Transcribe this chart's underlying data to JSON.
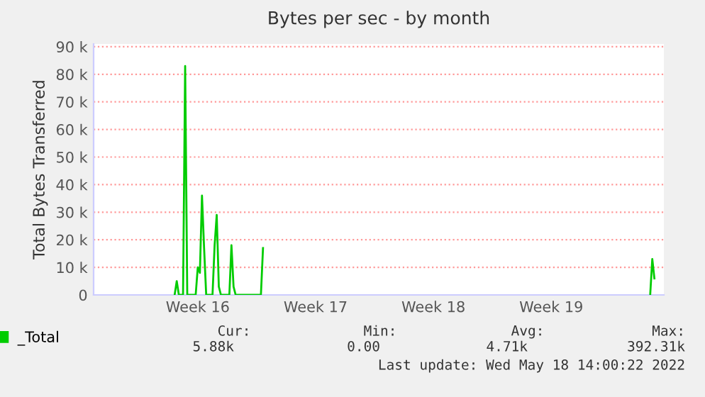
{
  "chart_data": {
    "type": "line",
    "title": "Bytes per sec - by month",
    "ylabel": "Total Bytes Transferred",
    "categories": [
      null,
      null,
      null,
      null,
      null,
      null,
      null,
      null,
      null,
      null,
      null,
      null,
      null,
      null,
      null,
      null,
      null,
      null,
      null,
      null,
      null,
      null,
      null,
      null,
      null,
      null,
      null,
      null,
      null,
      null,
      null,
      null,
      null,
      null,
      null,
      null,
      null,
      null,
      null,
      null,
      null,
      null,
      null,
      null,
      null,
      null,
      null,
      null,
      null,
      "Week 16",
      null,
      null,
      null,
      null,
      null,
      null,
      null,
      null,
      null,
      null,
      null,
      null,
      null,
      null,
      null,
      null,
      null,
      null,
      null,
      null,
      null,
      null,
      null,
      null,
      null,
      null,
      null,
      null,
      null,
      null,
      null,
      null,
      null,
      null,
      null,
      null,
      null,
      null,
      null,
      null,
      null,
      null,
      null,
      null,
      null,
      null,
      null,
      null,
      null,
      null,
      null,
      null,
      null,
      null,
      null,
      "Week 17",
      null,
      null,
      null,
      null,
      null,
      null,
      null,
      null,
      null,
      null,
      null,
      null,
      null,
      null,
      null,
      null,
      null,
      null,
      null,
      null,
      null,
      null,
      null,
      null,
      null,
      null,
      null,
      null,
      null,
      null,
      null,
      null,
      null,
      null,
      null,
      null,
      null,
      null,
      null,
      null,
      null,
      null,
      null,
      null,
      null,
      null,
      null,
      null,
      null,
      null,
      null,
      null,
      null,
      null,
      null,
      "Week 18",
      null,
      null,
      null,
      null,
      null,
      null,
      null,
      null,
      null,
      null,
      null,
      null,
      null,
      null,
      null,
      null,
      null,
      null,
      null,
      null,
      null,
      null,
      null,
      null,
      null,
      null,
      null,
      null,
      null,
      null,
      null,
      null,
      null,
      null,
      null,
      null,
      null,
      null,
      null,
      null,
      null,
      null,
      null,
      null,
      null,
      null,
      null,
      null,
      null,
      null,
      null,
      null,
      null,
      null,
      null,
      "Week 19",
      null,
      null,
      null,
      null,
      null,
      null,
      null,
      null,
      null,
      null,
      null,
      null,
      null,
      null,
      null,
      null,
      null,
      null,
      null,
      null,
      null,
      null,
      null,
      null,
      null,
      null,
      null,
      null,
      null,
      null,
      null,
      null,
      null,
      null,
      null,
      null,
      null,
      null,
      null,
      null,
      null,
      null,
      null,
      null,
      null,
      null,
      null,
      null,
      null,
      null,
      null,
      null,
      null
    ],
    "series": [
      {
        "name": "_Total",
        "color": "#00cc00",
        "values": [
          null,
          null,
          null,
          null,
          null,
          null,
          null,
          null,
          null,
          null,
          null,
          null,
          null,
          null,
          null,
          null,
          null,
          null,
          null,
          null,
          null,
          null,
          null,
          null,
          null,
          null,
          null,
          null,
          null,
          null,
          null,
          null,
          null,
          null,
          null,
          null,
          null,
          null,
          0,
          5000,
          0,
          0,
          0,
          83000,
          0,
          0,
          0,
          0,
          0,
          10000,
          8000,
          36000,
          17000,
          0,
          0,
          0,
          0,
          18000,
          29000,
          3000,
          0,
          0,
          0,
          0,
          0,
          18000,
          3000,
          0,
          0,
          0,
          0,
          0,
          0,
          0,
          0,
          0,
          0,
          0,
          0,
          0,
          17000,
          null,
          null,
          null,
          null,
          null,
          null,
          null,
          null,
          null,
          null,
          null,
          null,
          null,
          null,
          null,
          null,
          null,
          null,
          null,
          null,
          null,
          null,
          null,
          null,
          null,
          null,
          null,
          null,
          null,
          null,
          null,
          null,
          null,
          null,
          null,
          null,
          null,
          null,
          null,
          null,
          null,
          null,
          null,
          null,
          null,
          null,
          null,
          null,
          null,
          null,
          null,
          null,
          null,
          null,
          null,
          null,
          null,
          null,
          null,
          null,
          null,
          null,
          null,
          null,
          null,
          null,
          null,
          null,
          null,
          null,
          null,
          null,
          null,
          null,
          null,
          null,
          null,
          null,
          null,
          null,
          null,
          null,
          null,
          null,
          null,
          null,
          null,
          null,
          null,
          null,
          null,
          null,
          null,
          null,
          null,
          null,
          null,
          null,
          null,
          null,
          null,
          null,
          null,
          null,
          null,
          null,
          null,
          null,
          null,
          null,
          null,
          null,
          null,
          null,
          null,
          null,
          null,
          null,
          null,
          null,
          null,
          null,
          null,
          null,
          null,
          null,
          null,
          null,
          null,
          null,
          null,
          null,
          null,
          null,
          null,
          null,
          null,
          null,
          null,
          null,
          null,
          null,
          null,
          null,
          null,
          null,
          null,
          null,
          null,
          null,
          null,
          null,
          null,
          null,
          null,
          null,
          null,
          null,
          null,
          null,
          null,
          null,
          null,
          null,
          null,
          null,
          null,
          null,
          null,
          null,
          null,
          null,
          null,
          null,
          null,
          null,
          null,
          null,
          null,
          null,
          null,
          null,
          null,
          0,
          13000,
          6000,
          null,
          null,
          null,
          null
        ]
      }
    ],
    "ylim": [
      0,
      91000
    ],
    "yticks": [
      {
        "value": 0,
        "label": "0"
      },
      {
        "value": 10000,
        "label": "10 k"
      },
      {
        "value": 20000,
        "label": "20 k"
      },
      {
        "value": 30000,
        "label": "30 k"
      },
      {
        "value": 40000,
        "label": "40 k"
      },
      {
        "value": 50000,
        "label": "50 k"
      },
      {
        "value": 60000,
        "label": "60 k"
      },
      {
        "value": 70000,
        "label": "70 k"
      },
      {
        "value": 80000,
        "label": "80 k"
      },
      {
        "value": 90000,
        "label": "90 k"
      }
    ],
    "grid": "y",
    "legend": "bottom left",
    "marker": "none",
    "line_style": "solid",
    "annotations": [
      "Cur:",
      "Min:",
      "Avg:",
      "Max:",
      "5.88k",
      "0.00",
      "4.71k",
      "392.31k",
      "Last update: Wed May 18 14:00:22 2022"
    ]
  }
}
